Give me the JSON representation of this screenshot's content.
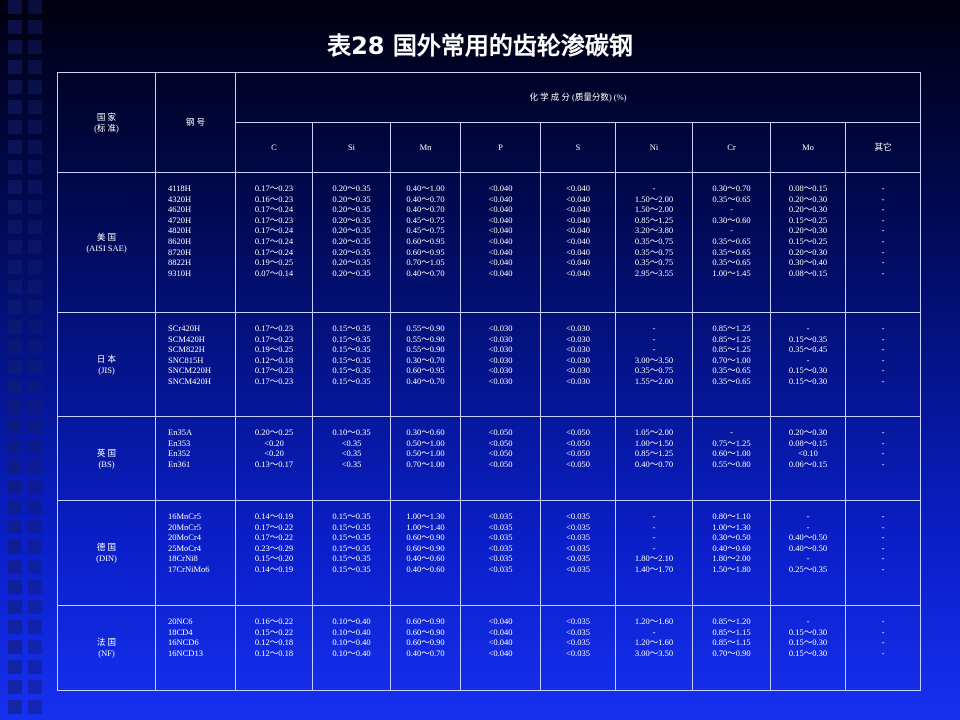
{
  "title": "表28  国外常用的齿轮渗碳钢",
  "table": {
    "header": {
      "country": [
        "国 家",
        "(标 准)"
      ],
      "grade": "钢 号",
      "composition": "化 学 成 分 (质量分数) (%)",
      "elements": [
        "C",
        "Si",
        "Mn",
        "P",
        "S",
        "Ni",
        "Cr",
        "Mo",
        "其它"
      ]
    },
    "groups": [
      {
        "country": [
          "美 国",
          "(AISI SAE)"
        ],
        "grades": [
          "4118H",
          "4320H",
          "4620H",
          "4720H",
          "4820H",
          "8620H",
          "8720H",
          "8822H",
          "9310H"
        ],
        "columns": [
          [
            "0.17～0.23",
            "0.16～0.23",
            "0.17～0.24",
            "0.17～0.23",
            "0.17～0.24",
            "0.17～0.24",
            "0.17～0.24",
            "0.19～0.25",
            "0.07～0.14"
          ],
          [
            "0.20～0.35",
            "0.20～0.35",
            "0.20～0.35",
            "0.20～0.35",
            "0.20～0.35",
            "0.20～0.35",
            "0.20～0.35",
            "0.20～0.35",
            "0.20～0.35"
          ],
          [
            "0.40～1.00",
            "0.40～0.70",
            "0.40～0.70",
            "0.45～0.75",
            "0.45～0.75",
            "0.60～0.95",
            "0.60～0.95",
            "0.70～1.05",
            "0.40～0.70"
          ],
          [
            "<0.040",
            "<0.040",
            "<0.040",
            "<0.040",
            "<0.040",
            "<0.040",
            "<0.040",
            "<0.040",
            "<0.040"
          ],
          [
            "<0.040",
            "<0.040",
            "<0.040",
            "<0.040",
            "<0.040",
            "<0.040",
            "<0.040",
            "<0.040",
            "<0.040"
          ],
          [
            "-",
            "1.50～2.00",
            "1.50～2.00",
            "0.85～1.25",
            "3.20～3.80",
            "0.35～0.75",
            "0.35～0.75",
            "0.35～0.75",
            "2.95～3.55"
          ],
          [
            "0.30～0.70",
            "0.35～0.65",
            "-",
            "0.30～0.60",
            "-",
            "0.35～0.65",
            "0.35～0.65",
            "0.35～0.65",
            "1.00～1.45"
          ],
          [
            "0.08～0.15",
            "0.20～0.30",
            "0.20～0.30",
            "0.15～0.25",
            "0.20～0.30",
            "0.15～0.25",
            "0.20～0.30",
            "0.30～0.40",
            "0.08～0.15"
          ],
          [
            "-",
            "-",
            "-",
            "-",
            "-",
            "-",
            "-",
            "-",
            "-"
          ]
        ]
      },
      {
        "country": [
          "日 本",
          "(JIS)"
        ],
        "grades": [
          "SCr420H",
          "SCM420H",
          "SCM822H",
          "SNC815H",
          "SNCM220H",
          "SNCM420H"
        ],
        "columns": [
          [
            "0.17～0.23",
            "0.17～0.23",
            "0.19～0.25",
            "0.12～0.18",
            "0.17～0.23",
            "0.17～0.23"
          ],
          [
            "0.15～0.35",
            "0.15～0.35",
            "0.15～0.35",
            "0.15～0.35",
            "0.15～0.35",
            "0.15～0.35"
          ],
          [
            "0.55～0.90",
            "0.55～0.90",
            "0.55～0.90",
            "0.30～0.70",
            "0.60～0.95",
            "0.40～0.70"
          ],
          [
            "<0.030",
            "<0.030",
            "<0.030",
            "<0.030",
            "<0.030",
            "<0.030"
          ],
          [
            "<0.030",
            "<0.030",
            "<0.030",
            "<0.030",
            "<0.030",
            "<0.030"
          ],
          [
            "-",
            "-",
            "-",
            "3.00～3.50",
            "0.35～0.75",
            "1.55～2.00"
          ],
          [
            "0.85～1.25",
            "0.85～1.25",
            "0.85～1.25",
            "0.70～1.00",
            "0.35～0.65",
            "0.35～0.65"
          ],
          [
            "-",
            "0.15～0.35",
            "0.35～0.45",
            "-",
            "0.15～0.30",
            "0.15～0.30"
          ],
          [
            "-",
            "-",
            "-",
            "-",
            "-",
            "-"
          ]
        ]
      },
      {
        "country": [
          "英 国",
          "(BS)"
        ],
        "grades": [
          "En35A",
          "En353",
          "En352",
          "En361"
        ],
        "columns": [
          [
            "0.20～0.25",
            "<0.20",
            "<0.20",
            "0.13～0.17"
          ],
          [
            "0.10～0.35",
            "<0.35",
            "<0.35",
            "<0.35"
          ],
          [
            "0.30～0.60",
            "0.50～1.00",
            "0.50～1.00",
            "0.70～1.00"
          ],
          [
            "<0.050",
            "<0.050",
            "<0.050",
            "<0.050"
          ],
          [
            "<0.050",
            "<0.050",
            "<0.050",
            "<0.050"
          ],
          [
            "1.05～2.00",
            "1.00～1.50",
            "0.85～1.25",
            "0.40～0.70"
          ],
          [
            "-",
            "0.75～1.25",
            "0.60～1.00",
            "0.55～0.80"
          ],
          [
            "0.20～0.30",
            "0.08～0.15",
            "<0.10",
            "0.06～0.15"
          ],
          [
            "-",
            "-",
            "-",
            "-"
          ]
        ]
      },
      {
        "country": [
          "德 国",
          "(DIN)"
        ],
        "grades": [
          "16MnCr5",
          "20MnCr5",
          "20MoCr4",
          "25MoCr4",
          "18CrNi8",
          "17CrNiMo6"
        ],
        "columns": [
          [
            "0.14～0.19",
            "0.17～0.22",
            "0.17～0.22",
            "0.23～0.29",
            "0.15～0.20",
            "0.14～0.19"
          ],
          [
            "0.15～0.35",
            "0.15～0.35",
            "0.15～0.35",
            "0.15～0.35",
            "0.15～0.35",
            "0.15～0.35"
          ],
          [
            "1.00～1.30",
            "1.00～1.40",
            "0.60～0.90",
            "0.60～0.90",
            "0.40～0.60",
            "0.40～0.60"
          ],
          [
            "<0.035",
            "<0.035",
            "<0.035",
            "<0.035",
            "<0.035",
            "<0.035"
          ],
          [
            "<0.035",
            "<0.035",
            "<0.035",
            "<0.035",
            "<0.035",
            "<0.035"
          ],
          [
            "-",
            "-",
            "-",
            "-",
            "1.80～2.10",
            "1.40～1.70"
          ],
          [
            "0.80～1.10",
            "1.00～1.30",
            "0.30～0.50",
            "0.40～0.60",
            "1.80～2.00",
            "1.50～1.80"
          ],
          [
            "-",
            "-",
            "0.40～0.50",
            "0.40～0.50",
            "-",
            "0.25～0.35"
          ],
          [
            "-",
            "-",
            "-",
            "-",
            "-",
            "-"
          ]
        ]
      },
      {
        "country": [
          "法 国",
          "(NF)"
        ],
        "grades": [
          "20NC6",
          "18CD4",
          "16NCD6",
          "16NCD13"
        ],
        "columns": [
          [
            "0.16～0.22",
            "0.15～0.22",
            "0.12～0.18",
            "0.12～0.18"
          ],
          [
            "0.10～0.40",
            "0.10～0.40",
            "0.10～0.40",
            "0.10～0.40"
          ],
          [
            "0.60～0.90",
            "0.60～0.90",
            "0.60～0.90",
            "0.40～0.70"
          ],
          [
            "<0.040",
            "<0.040",
            "<0.040",
            "<0.040"
          ],
          [
            "<0.035",
            "<0.035",
            "<0.035",
            "<0.035"
          ],
          [
            "1.20～1.60",
            "-",
            "1.20～1.60",
            "3.00～3.50"
          ],
          [
            "0.85～1.20",
            "0.85～1.15",
            "0.85～1.15",
            "0.70～0.90"
          ],
          [
            "-",
            "0.15～0.30",
            "0.15～0.30",
            "0.15～0.30"
          ],
          [
            "-",
            "-",
            "-",
            "-"
          ]
        ]
      }
    ]
  }
}
